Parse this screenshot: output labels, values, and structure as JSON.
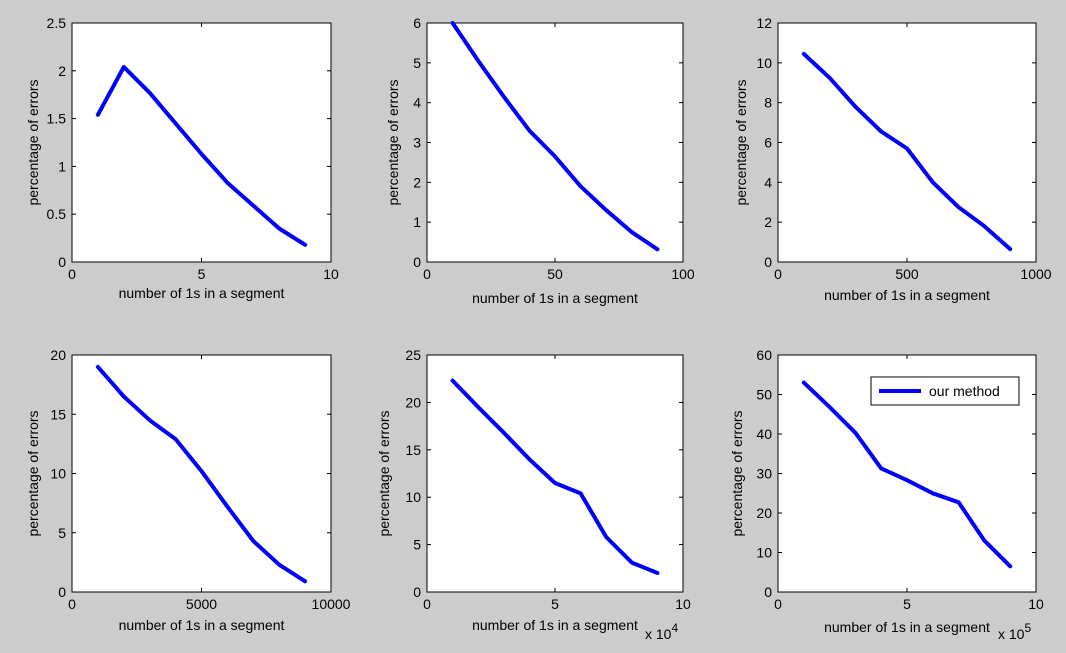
{
  "chart_data": [
    {
      "type": "line",
      "xlabel": "number of 1s in a segment",
      "ylabel": "percentage of errors",
      "xlim": [
        0,
        10
      ],
      "ylim": [
        0,
        2.5
      ],
      "xticks": [
        0,
        5,
        10
      ],
      "xtick_labels": [
        "0",
        "5",
        "10"
      ],
      "yticks": [
        0,
        0.5,
        1,
        1.5,
        2,
        2.5
      ],
      "ytick_labels": [
        "0",
        "0.5",
        "1",
        "1.5",
        "2",
        "2.5"
      ],
      "series": [
        {
          "x": [
            1,
            2,
            3,
            4,
            5,
            6,
            7,
            8,
            9
          ],
          "y": [
            1.54,
            2.04,
            1.77,
            1.45,
            1.13,
            0.83,
            0.59,
            0.35,
            0.18
          ]
        }
      ],
      "color": "#0000ff"
    },
    {
      "type": "line",
      "xlabel": "number of 1s in a segment",
      "ylabel": "percentage of errors",
      "xlim": [
        0,
        100
      ],
      "ylim": [
        0,
        6
      ],
      "xticks": [
        0,
        50,
        100
      ],
      "xtick_labels": [
        "0",
        "50",
        "100"
      ],
      "yticks": [
        0,
        1,
        2,
        3,
        4,
        5,
        6
      ],
      "ytick_labels": [
        "0",
        "1",
        "2",
        "3",
        "4",
        "5",
        "6"
      ],
      "series": [
        {
          "x": [
            10,
            20,
            30,
            40,
            50,
            60,
            70,
            80,
            90
          ],
          "y": [
            6.0,
            5.05,
            4.15,
            3.3,
            2.65,
            1.9,
            1.3,
            0.75,
            0.32
          ]
        }
      ],
      "color": "#0000ff"
    },
    {
      "type": "line",
      "xlabel": "number of 1s in a segment",
      "ylabel": "percentage of errors",
      "xlim": [
        0,
        1000
      ],
      "ylim": [
        0,
        12
      ],
      "xticks": [
        0,
        500,
        1000
      ],
      "xtick_labels": [
        "0",
        "500",
        "1000"
      ],
      "yticks": [
        0,
        2,
        4,
        6,
        8,
        10,
        12
      ],
      "ytick_labels": [
        "0",
        "2",
        "4",
        "6",
        "8",
        "10",
        "12"
      ],
      "series": [
        {
          "x": [
            100,
            200,
            300,
            400,
            500,
            600,
            700,
            800,
            900
          ],
          "y": [
            10.45,
            9.25,
            7.8,
            6.55,
            5.7,
            4.0,
            2.75,
            1.8,
            0.65
          ]
        }
      ],
      "color": "#0000ff"
    },
    {
      "type": "line",
      "xlabel": "number of 1s in a segment",
      "ylabel": "percentage of errors",
      "xlim": [
        0,
        10000
      ],
      "ylim": [
        0,
        20
      ],
      "xticks": [
        0,
        5000,
        10000
      ],
      "xtick_labels": [
        "0",
        "5000",
        "10000"
      ],
      "yticks": [
        0,
        5,
        10,
        15,
        20
      ],
      "ytick_labels": [
        "0",
        "5",
        "10",
        "15",
        "20"
      ],
      "series": [
        {
          "x": [
            1000,
            2000,
            3000,
            4000,
            5000,
            6000,
            7000,
            8000,
            9000
          ],
          "y": [
            19.0,
            16.5,
            14.5,
            12.9,
            10.2,
            7.2,
            4.3,
            2.3,
            0.9
          ]
        }
      ],
      "color": "#0000ff"
    },
    {
      "type": "line",
      "xlabel": "number of 1s in a segment",
      "ylabel": "percentage of errors",
      "xlim": [
        0,
        10
      ],
      "ylim": [
        0,
        25
      ],
      "xticks": [
        0,
        5,
        10
      ],
      "xtick_labels": [
        "0",
        "5",
        "10"
      ],
      "x_exponent_base": "x 10",
      "x_exponent": "4",
      "yticks": [
        0,
        5,
        10,
        15,
        20,
        25
      ],
      "ytick_labels": [
        "0",
        "5",
        "10",
        "15",
        "20",
        "25"
      ],
      "series": [
        {
          "x": [
            1,
            2,
            3,
            4,
            5,
            6,
            7,
            8,
            9
          ],
          "y": [
            22.3,
            19.5,
            16.8,
            14.0,
            11.5,
            10.4,
            5.8,
            3.1,
            2.0
          ]
        }
      ],
      "color": "#0000ff"
    },
    {
      "type": "line",
      "xlabel": "number of 1s in a segment",
      "ylabel": "percentage of errors",
      "xlim": [
        0,
        10
      ],
      "ylim": [
        0,
        60
      ],
      "xticks": [
        0,
        5,
        10
      ],
      "xtick_labels": [
        "0",
        "5",
        "10"
      ],
      "x_exponent_base": "x 10",
      "x_exponent": "5",
      "yticks": [
        0,
        10,
        20,
        30,
        40,
        50,
        60
      ],
      "ytick_labels": [
        "0",
        "10",
        "20",
        "30",
        "40",
        "50",
        "60"
      ],
      "series": [
        {
          "name": "our method",
          "x": [
            1,
            2,
            3,
            4,
            5,
            6,
            7,
            8,
            9
          ],
          "y": [
            53.0,
            46.8,
            40.3,
            31.3,
            28.3,
            25.0,
            22.7,
            13.0,
            6.5
          ]
        }
      ],
      "legend": "top-right",
      "color": "#0000ff"
    }
  ]
}
